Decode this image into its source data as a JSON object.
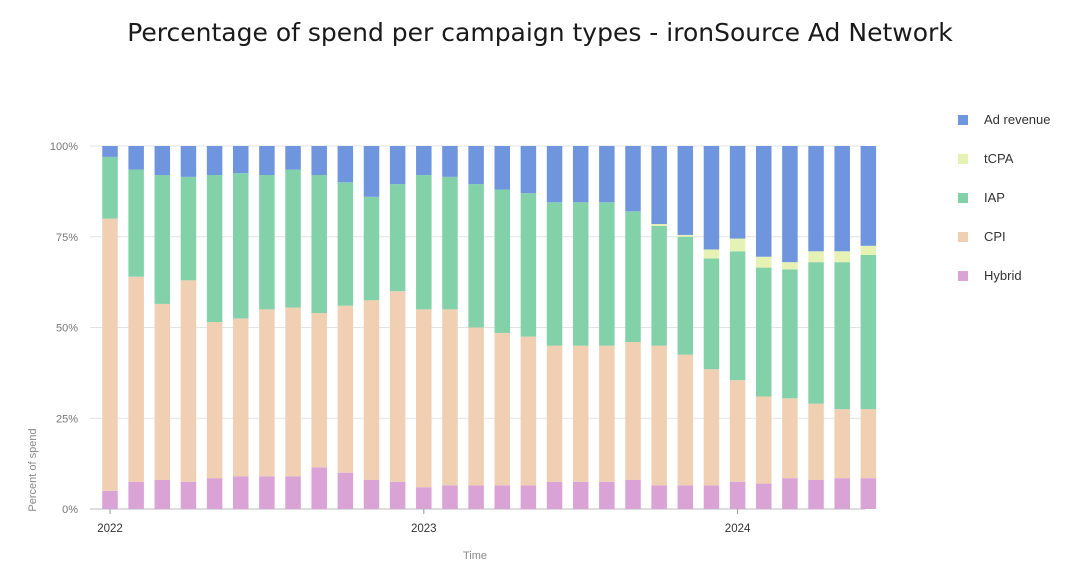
{
  "chart_data": {
    "type": "bar",
    "stacked": true,
    "normalized": true,
    "title": "Percentage of spend per campaign types - ironSource Ad Network",
    "xlabel": "Time",
    "ylabel": "Percent of spend",
    "ylim": [
      0,
      100
    ],
    "yticks": [
      "0%",
      "25%",
      "50%",
      "75%",
      "100%"
    ],
    "xticks": [
      {
        "label": "2022",
        "index": 0
      },
      {
        "label": "2023",
        "index": 12
      },
      {
        "label": "2024",
        "index": 24
      }
    ],
    "grid": true,
    "legend_position": "right",
    "categories": [
      "Jan 2022",
      "Feb 2022",
      "Mar 2022",
      "Apr 2022",
      "May 2022",
      "Jun 2022",
      "Jul 2022",
      "Aug 2022",
      "Sep 2022",
      "Oct 2022",
      "Nov 2022",
      "Dec 2022",
      "Jan 2023",
      "Feb 2023",
      "Mar 2023",
      "Apr 2023",
      "May 2023",
      "Jun 2023",
      "Jul 2023",
      "Aug 2023",
      "Sep 2023",
      "Oct 2023",
      "Nov 2023",
      "Dec 2023",
      "Jan 2024",
      "Feb 2024",
      "Mar 2024",
      "Apr 2024",
      "May 2024",
      "Jun 2024"
    ],
    "series": [
      {
        "name": "Hybrid",
        "color": "#d9a3d6",
        "values": [
          5,
          7.5,
          8,
          7.5,
          8.5,
          9,
          9,
          9,
          11.5,
          10,
          8,
          7.5,
          6,
          6.5,
          6.5,
          6.5,
          6.5,
          7.5,
          7.5,
          7.5,
          8,
          6.5,
          6.5,
          6.5,
          7.5,
          7,
          8.5,
          8,
          8.5,
          8.5
        ]
      },
      {
        "name": "CPI",
        "color": "#f0cfb3",
        "values": [
          75,
          56.5,
          48.5,
          55.5,
          43,
          43.5,
          46,
          46.5,
          42.5,
          46,
          49.5,
          52.5,
          49,
          48.5,
          43.5,
          42,
          41,
          37.5,
          37.5,
          37.5,
          38,
          38.5,
          36,
          32,
          28,
          24,
          22,
          21,
          19,
          19
        ]
      },
      {
        "name": "IAP",
        "color": "#83d1a9",
        "values": [
          17,
          29.5,
          35.5,
          28.5,
          40.5,
          40,
          37,
          38,
          38,
          34,
          28.5,
          29.5,
          37,
          36.5,
          39.5,
          39.5,
          39.5,
          39.5,
          39.5,
          39.5,
          36,
          33,
          32.5,
          30.5,
          35.5,
          35.5,
          35.5,
          39,
          40.5,
          42.5
        ]
      },
      {
        "name": "tCPA",
        "color": "#e6f2b3",
        "values": [
          0,
          0,
          0,
          0,
          0,
          0,
          0,
          0,
          0,
          0,
          0,
          0,
          0,
          0,
          0,
          0,
          0,
          0,
          0,
          0,
          0,
          0.5,
          0.5,
          2.5,
          3.5,
          3,
          2,
          3,
          3,
          2.5
        ]
      },
      {
        "name": "Ad revenue",
        "color": "#6e95de",
        "values": [
          3,
          6.5,
          8,
          8.5,
          8,
          7.5,
          8,
          6.5,
          8,
          10,
          14,
          10.5,
          8,
          8.5,
          10.5,
          12,
          13,
          15.5,
          15.5,
          15.5,
          18,
          21.5,
          24.5,
          28.5,
          25.5,
          30.5,
          32,
          29,
          29,
          27.5
        ]
      }
    ]
  },
  "legend": [
    {
      "name": "Ad revenue",
      "color": "#6e95de"
    },
    {
      "name": "tCPA",
      "color": "#e6f2b3"
    },
    {
      "name": "IAP",
      "color": "#83d1a9"
    },
    {
      "name": "CPI",
      "color": "#f0cfb3"
    },
    {
      "name": "Hybrid",
      "color": "#d9a3d6"
    }
  ]
}
